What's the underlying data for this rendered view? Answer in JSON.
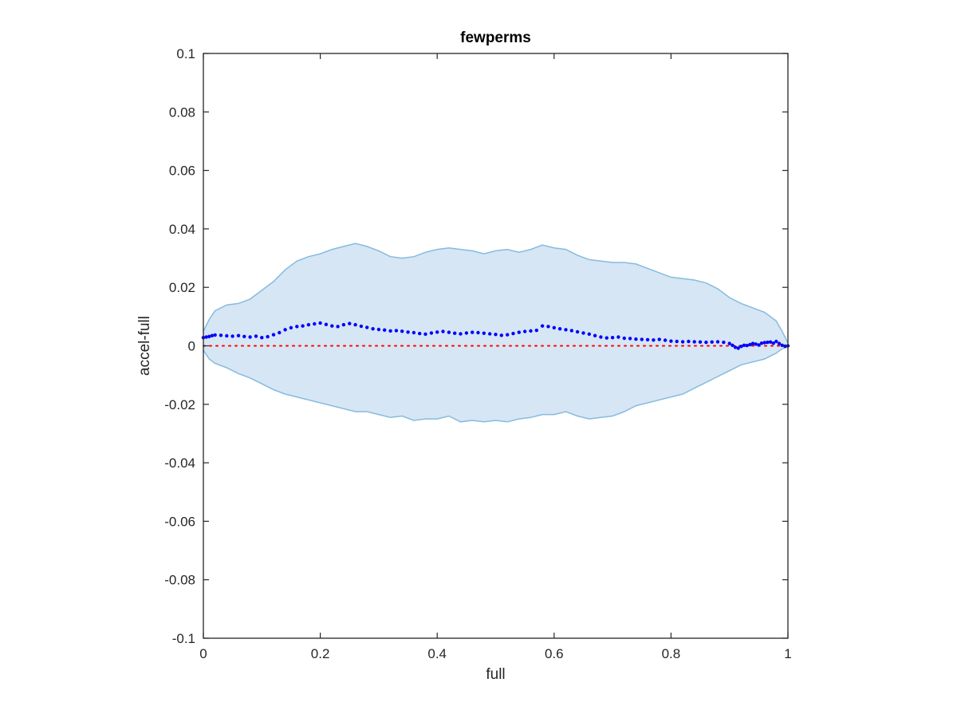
{
  "chart_data": {
    "type": "scatter",
    "title": "fewperms",
    "xlabel": "full",
    "ylabel": "accel-full",
    "xlim": [
      0,
      1
    ],
    "ylim": [
      -0.1,
      0.1
    ],
    "xticks": [
      0,
      0.2,
      0.4,
      0.6,
      0.8,
      1
    ],
    "xtick_labels": [
      "0",
      "0.2",
      "0.4",
      "0.6",
      "0.8",
      "1"
    ],
    "yticks": [
      0.1,
      0.08,
      0.06,
      0.04,
      0.02,
      0,
      -0.02,
      -0.04,
      -0.06,
      -0.08,
      -0.1
    ],
    "ytick_labels": [
      "0.1",
      "0.08",
      "0.06",
      "0.04",
      "0.02",
      "0",
      "-0.02",
      "-0.04",
      "-0.06",
      "-0.08",
      "-0.1"
    ],
    "grid": false,
    "colors": {
      "band_fill": "#d6e6f4",
      "band_edge": "#86bbe0",
      "points": "#0000ff",
      "zero_line": "#ff0000",
      "axes": "#262626"
    },
    "band": {
      "x": [
        0,
        0.01,
        0.02,
        0.04,
        0.06,
        0.08,
        0.1,
        0.12,
        0.14,
        0.16,
        0.18,
        0.2,
        0.22,
        0.24,
        0.26,
        0.28,
        0.3,
        0.32,
        0.34,
        0.36,
        0.38,
        0.4,
        0.42,
        0.44,
        0.46,
        0.48,
        0.5,
        0.52,
        0.54,
        0.56,
        0.58,
        0.6,
        0.62,
        0.64,
        0.66,
        0.68,
        0.7,
        0.72,
        0.74,
        0.76,
        0.78,
        0.8,
        0.82,
        0.84,
        0.86,
        0.88,
        0.9,
        0.92,
        0.94,
        0.96,
        0.98,
        0.99,
        1.0
      ],
      "upper": [
        0.005,
        0.009,
        0.012,
        0.014,
        0.0145,
        0.016,
        0.019,
        0.022,
        0.026,
        0.029,
        0.0305,
        0.0315,
        0.033,
        0.034,
        0.035,
        0.034,
        0.0325,
        0.0305,
        0.03,
        0.0305,
        0.032,
        0.033,
        0.0335,
        0.033,
        0.0325,
        0.0315,
        0.0325,
        0.033,
        0.032,
        0.033,
        0.0345,
        0.0335,
        0.033,
        0.031,
        0.0295,
        0.029,
        0.0285,
        0.0285,
        0.028,
        0.0265,
        0.025,
        0.0235,
        0.023,
        0.0225,
        0.0215,
        0.0195,
        0.0165,
        0.0145,
        0.013,
        0.0115,
        0.0085,
        0.005,
        0.001
      ],
      "lower": [
        -0.0015,
        -0.0045,
        -0.006,
        -0.0075,
        -0.0095,
        -0.011,
        -0.013,
        -0.015,
        -0.0165,
        -0.0175,
        -0.0185,
        -0.0195,
        -0.0205,
        -0.0215,
        -0.0225,
        -0.0225,
        -0.0235,
        -0.0245,
        -0.024,
        -0.0255,
        -0.025,
        -0.025,
        -0.024,
        -0.026,
        -0.0255,
        -0.026,
        -0.0255,
        -0.026,
        -0.025,
        -0.0245,
        -0.0235,
        -0.0235,
        -0.0225,
        -0.024,
        -0.025,
        -0.0245,
        -0.024,
        -0.0225,
        -0.0205,
        -0.0195,
        -0.0185,
        -0.0175,
        -0.0165,
        -0.0145,
        -0.0125,
        -0.0105,
        -0.0085,
        -0.0065,
        -0.0055,
        -0.0045,
        -0.0025,
        -0.001,
        -0.0005
      ]
    },
    "points": {
      "x": [
        0.0,
        0.005,
        0.01,
        0.015,
        0.02,
        0.03,
        0.04,
        0.05,
        0.06,
        0.07,
        0.08,
        0.09,
        0.1,
        0.11,
        0.12,
        0.13,
        0.14,
        0.15,
        0.16,
        0.17,
        0.18,
        0.19,
        0.2,
        0.21,
        0.22,
        0.23,
        0.24,
        0.25,
        0.26,
        0.27,
        0.28,
        0.29,
        0.3,
        0.31,
        0.32,
        0.33,
        0.34,
        0.35,
        0.36,
        0.37,
        0.38,
        0.39,
        0.4,
        0.41,
        0.42,
        0.43,
        0.44,
        0.45,
        0.46,
        0.47,
        0.48,
        0.49,
        0.5,
        0.51,
        0.52,
        0.53,
        0.54,
        0.55,
        0.56,
        0.57,
        0.58,
        0.59,
        0.6,
        0.61,
        0.62,
        0.63,
        0.64,
        0.65,
        0.66,
        0.67,
        0.68,
        0.69,
        0.7,
        0.71,
        0.72,
        0.73,
        0.74,
        0.75,
        0.76,
        0.77,
        0.78,
        0.79,
        0.8,
        0.81,
        0.82,
        0.83,
        0.84,
        0.85,
        0.86,
        0.87,
        0.88,
        0.89,
        0.9,
        0.905,
        0.91,
        0.915,
        0.92,
        0.925,
        0.93,
        0.935,
        0.94,
        0.945,
        0.95,
        0.955,
        0.96,
        0.965,
        0.97,
        0.975,
        0.98,
        0.985,
        0.99,
        0.995,
        1.0
      ],
      "y": [
        0.0028,
        0.003,
        0.0032,
        0.0035,
        0.0037,
        0.0036,
        0.0034,
        0.0033,
        0.0035,
        0.0032,
        0.003,
        0.0033,
        0.0028,
        0.0031,
        0.0038,
        0.0045,
        0.0055,
        0.0062,
        0.0066,
        0.0068,
        0.0072,
        0.0075,
        0.0078,
        0.0073,
        0.0068,
        0.0066,
        0.0072,
        0.0076,
        0.0072,
        0.0067,
        0.0063,
        0.0058,
        0.0056,
        0.0054,
        0.0051,
        0.0052,
        0.005,
        0.0047,
        0.0045,
        0.0042,
        0.004,
        0.0044,
        0.0047,
        0.0049,
        0.0046,
        0.0043,
        0.0041,
        0.0044,
        0.0046,
        0.0045,
        0.0043,
        0.0041,
        0.0039,
        0.0036,
        0.0038,
        0.0042,
        0.0046,
        0.0049,
        0.0051,
        0.0053,
        0.0068,
        0.0066,
        0.0062,
        0.0058,
        0.0055,
        0.0052,
        0.0048,
        0.0044,
        0.004,
        0.0035,
        0.003,
        0.0027,
        0.0028,
        0.003,
        0.0026,
        0.0025,
        0.0023,
        0.0022,
        0.0021,
        0.002,
        0.0022,
        0.0019,
        0.0016,
        0.0015,
        0.0014,
        0.0015,
        0.0014,
        0.0013,
        0.0012,
        0.0013,
        0.0014,
        0.0012,
        0.0008,
        0.0002,
        -0.0005,
        -0.0008,
        -0.0002,
        0.0002,
        0.0001,
        0.0004,
        0.0008,
        0.0006,
        0.0003,
        0.0009,
        0.0011,
        0.0012,
        0.0013,
        0.0009,
        0.0015,
        0.0008,
        0.0002,
        -0.0001,
        0.0
      ]
    },
    "reference_line": {
      "y": 0,
      "style": "dotted"
    }
  }
}
